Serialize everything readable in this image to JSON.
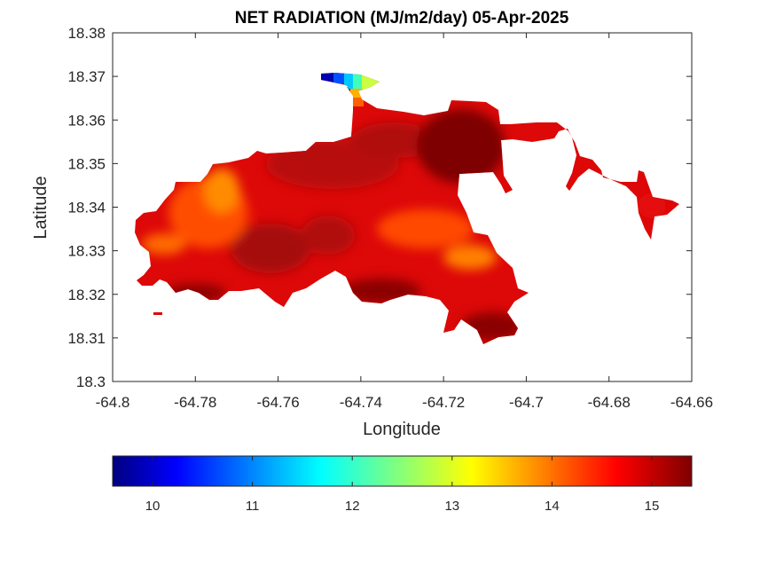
{
  "chart_data": {
    "type": "heatmap",
    "title": "NET RADIATION (MJ/m2/day) 05-Apr-2025",
    "xlabel": "Longitude",
    "ylabel": "Latitude",
    "xlim": [
      -64.8,
      -64.66
    ],
    "ylim": [
      18.3,
      18.38
    ],
    "x_ticks": [
      -64.8,
      -64.78,
      -64.76,
      -64.74,
      -64.72,
      -64.7,
      -64.68,
      -64.66
    ],
    "x_tick_labels": [
      "-64.8",
      "-64.78",
      "-64.76",
      "-64.74",
      "-64.72",
      "-64.7",
      "-64.68",
      "-64.66"
    ],
    "y_ticks": [
      18.3,
      18.31,
      18.32,
      18.33,
      18.34,
      18.35,
      18.36,
      18.37,
      18.38
    ],
    "y_tick_labels": [
      "18.3",
      "18.31",
      "18.32",
      "18.33",
      "18.34",
      "18.35",
      "18.36",
      "18.37",
      "18.38"
    ],
    "colorbar": {
      "colormap": "jet",
      "range": [
        9.6,
        15.4
      ],
      "ticks": [
        10,
        11,
        12,
        13,
        14,
        15
      ],
      "tick_labels": [
        "10",
        "11",
        "12",
        "13",
        "14",
        "15"
      ],
      "placement": "bottom"
    },
    "grid": false,
    "approx_value_range": [
      9.8,
      15.3
    ]
  }
}
